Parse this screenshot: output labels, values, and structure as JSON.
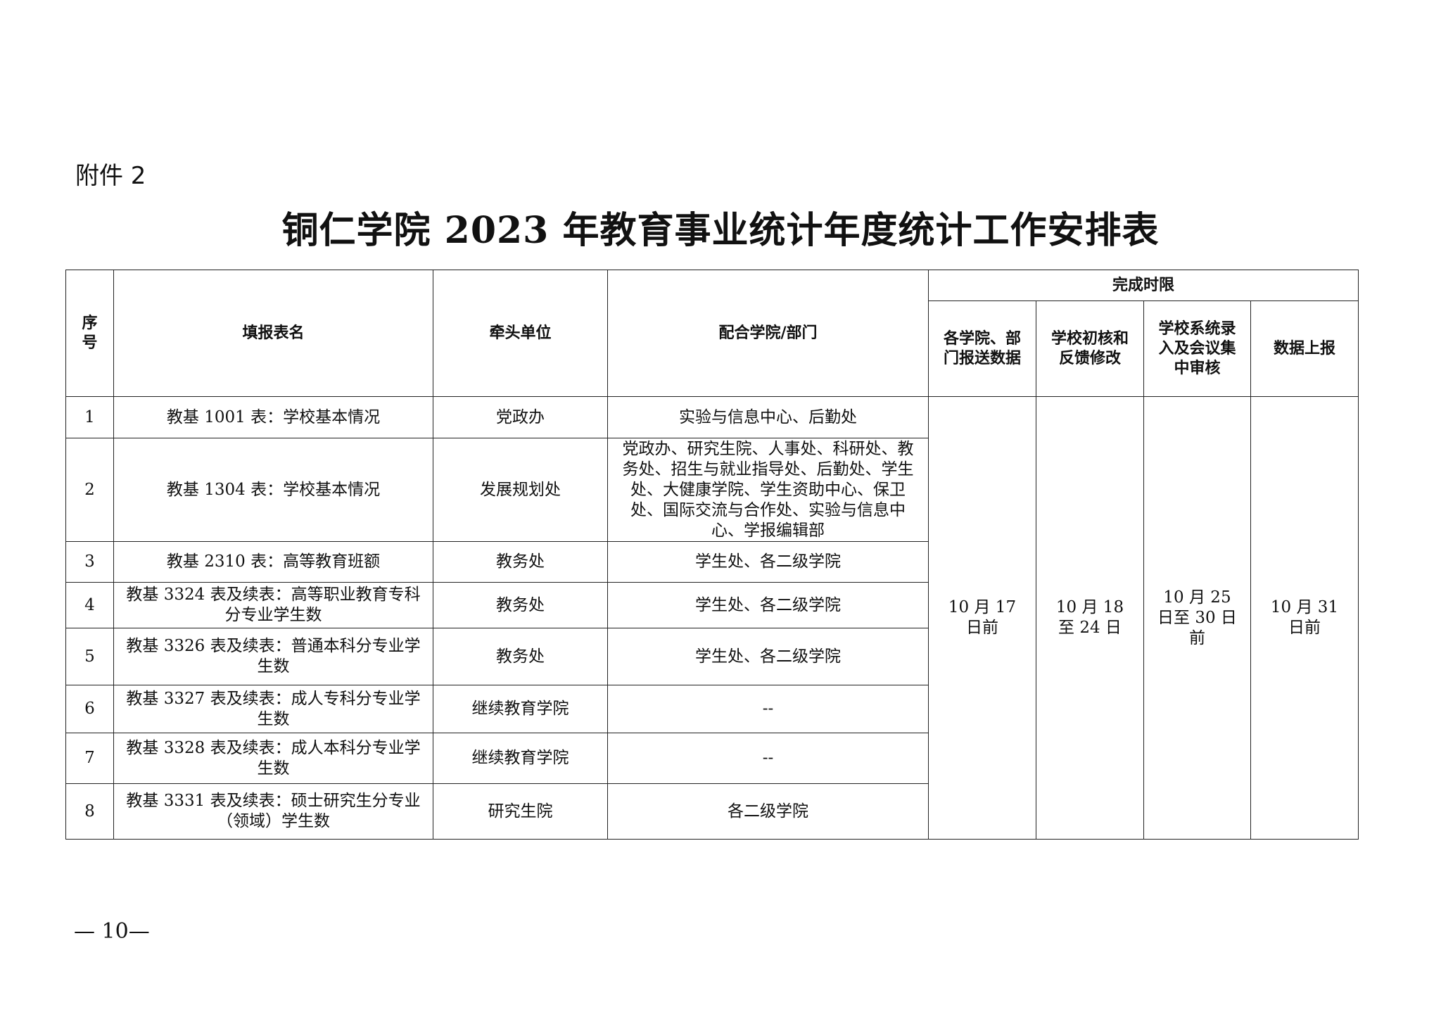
{
  "attachment_label": "附件 2",
  "title": "铜仁学院 2023 年教育事业统计年度统计工作安排表",
  "table": {
    "headers": {
      "seq": "序号",
      "form": "填报表名",
      "lead": "牵头单位",
      "coop": "配合学院/部门",
      "deadline_group": "完成时限",
      "d1": "各学院、部门报送数据",
      "d2": "学校初核和反馈修改",
      "d3": "学校系统录入及会议集中审核",
      "d4": "数据上报"
    },
    "rows": [
      {
        "seq": "1",
        "form": "教基 1001 表：学校基本情况",
        "lead": "党政办",
        "coop": "实验与信息中心、后勤处"
      },
      {
        "seq": "2",
        "form": "教基 1304 表：学校基本情况",
        "lead": "发展规划处",
        "coop": "党政办、研究生院、人事处、科研处、教务处、招生与就业指导处、后勤处、学生处、大健康学院、学生资助中心、保卫处、国际交流与合作处、实验与信息中心、学报编辑部"
      },
      {
        "seq": "3",
        "form": "教基 2310 表：高等教育班额",
        "lead": "教务处",
        "coop": "学生处、各二级学院"
      },
      {
        "seq": "4",
        "form": "教基 3324 表及续表：高等职业教育专科分专业学生数",
        "lead": "教务处",
        "coop": "学生处、各二级学院"
      },
      {
        "seq": "5",
        "form": "教基 3326 表及续表：普通本科分专业学生数",
        "lead": "教务处",
        "coop": "学生处、各二级学院"
      },
      {
        "seq": "6",
        "form": "教基 3327 表及续表：成人专科分专业学生数",
        "lead": "继续教育学院",
        "coop": "--"
      },
      {
        "seq": "7",
        "form": "教基 3328 表及续表：成人本科分专业学生数",
        "lead": "继续教育学院",
        "coop": "--"
      },
      {
        "seq": "8",
        "form": "教基 3331 表及续表：硕士研究生分专业（领域）学生数",
        "lead": "研究生院",
        "coop": "各二级学院"
      }
    ],
    "deadlines": {
      "d1": "10 月 17 日前",
      "d2": "10 月 18 至 24 日",
      "d3": "10 月 25 日至 30 日前",
      "d4": "10 月 31 日前"
    }
  },
  "page_number": "— 10—"
}
